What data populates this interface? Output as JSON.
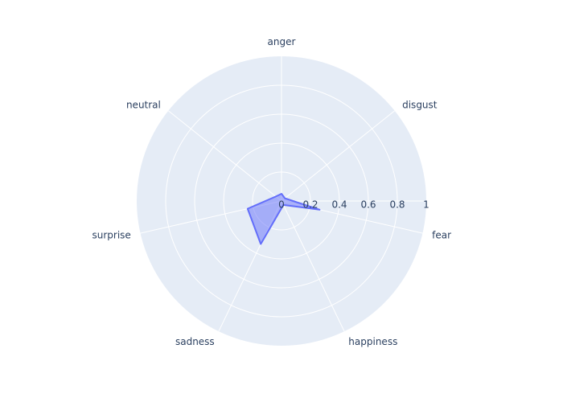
{
  "chart_data": {
    "type": "radar",
    "categories": [
      "anger",
      "disgust",
      "fear",
      "happiness",
      "sadness",
      "surprise",
      "neutral"
    ],
    "series": [
      {
        "values": [
          0.05,
          0.03,
          0.27,
          0.03,
          0.33,
          0.24,
          0.05
        ]
      }
    ],
    "radial_range": [
      0,
      1
    ],
    "radial_ticks": [
      0,
      0.2,
      0.4,
      0.6,
      0.8,
      1
    ],
    "radial_tick_labels": [
      "0",
      "0.2",
      "0.4",
      "0.6",
      "0.8",
      "1"
    ],
    "grid": true,
    "legend": "none",
    "colors": {
      "background": "#e5ecf6",
      "grid": "#ffffff",
      "series_line": "#636efa",
      "series_fill": "rgba(99,110,250,0.5)",
      "text": "#2a3f5f"
    }
  }
}
